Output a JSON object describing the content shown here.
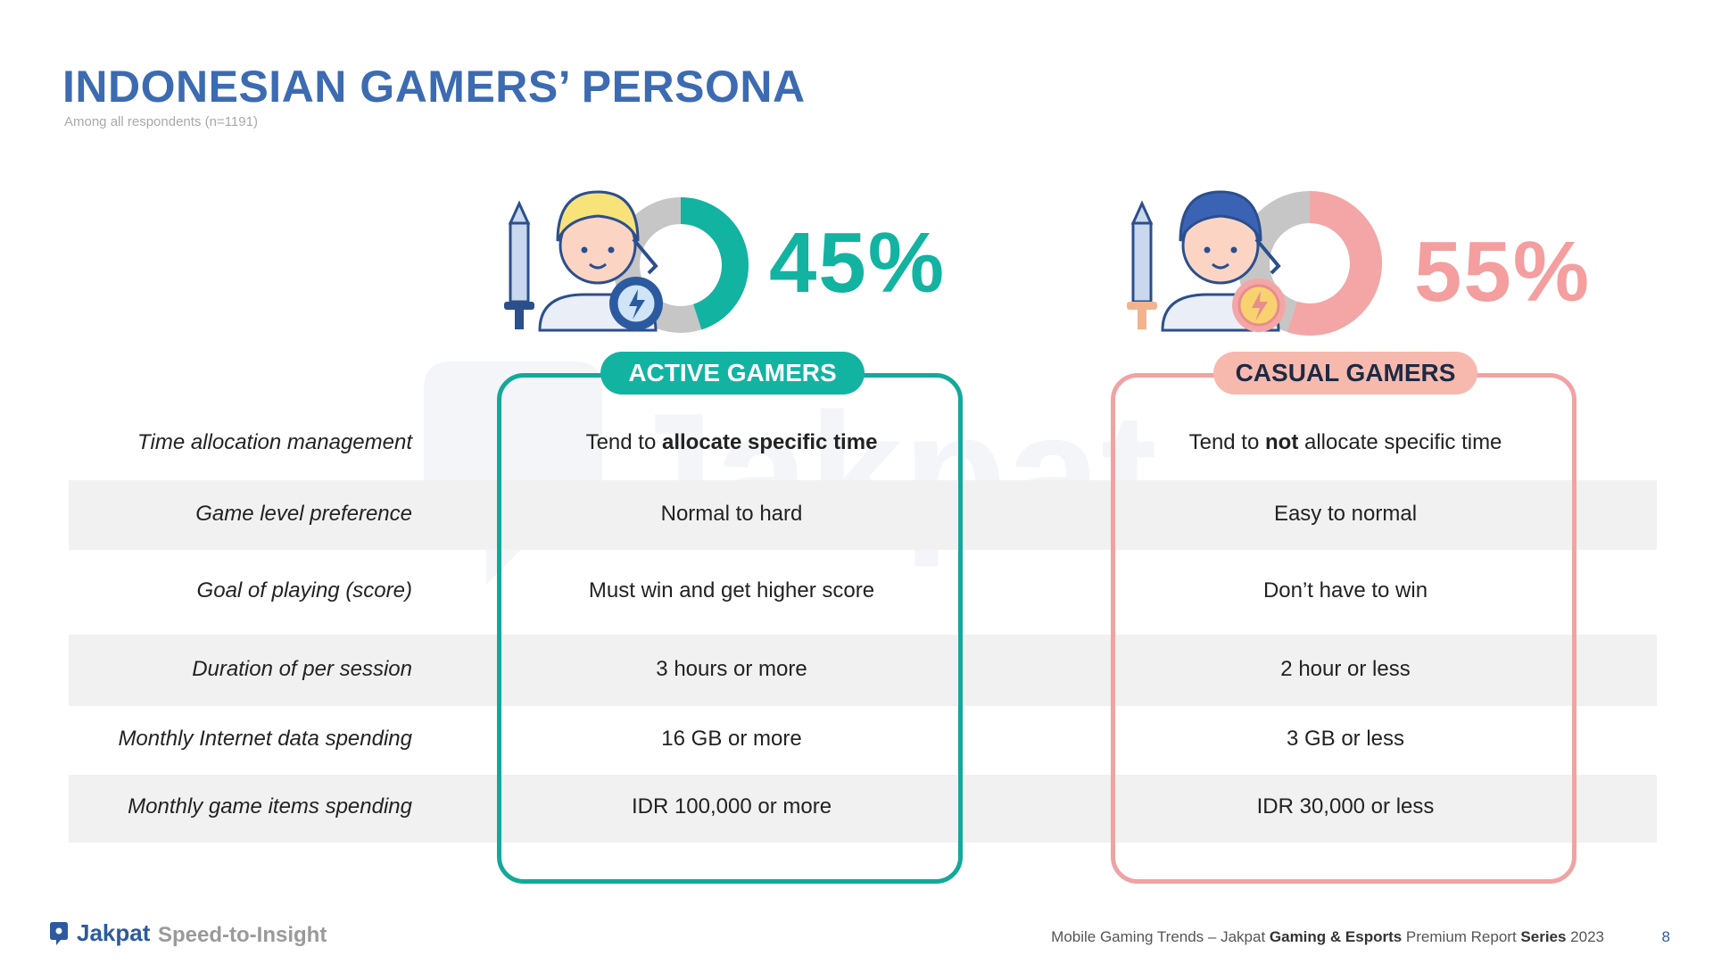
{
  "header": {
    "title": "INDONESIAN GAMERS’ PERSONA",
    "subtitle": "Among all respondents (n=1191)"
  },
  "watermark": {
    "text": "Jakpat"
  },
  "personas": {
    "active": {
      "label": "ACTIVE GAMERS",
      "percent_text": "45%",
      "share_percent": 45,
      "color": "#13b3a2"
    },
    "casual": {
      "label": "CASUAL GAMERS",
      "percent_text": "55%",
      "share_percent": 55,
      "color": "#f49e9f"
    }
  },
  "rows": [
    {
      "label": "Time allocation management",
      "active": {
        "pre": "Tend to ",
        "bold": "allocate specific time",
        "post": ""
      },
      "casual": {
        "pre": "Tend to ",
        "bold": "not",
        "post": " allocate specific time"
      }
    },
    {
      "label": "Game level preference",
      "active": {
        "pre": "Normal to hard"
      },
      "casual": {
        "pre": "Easy to normal"
      }
    },
    {
      "label": "Goal of playing (score)",
      "active": {
        "pre": "Must win and get higher score"
      },
      "casual": {
        "pre": "Don’t have to win"
      }
    },
    {
      "label": "Duration of per session",
      "active": {
        "pre": "3 hours or more"
      },
      "casual": {
        "pre": "2 hour or less"
      }
    },
    {
      "label": "Monthly Internet data spending",
      "active": {
        "pre": "16 GB or more"
      },
      "casual": {
        "pre": "3 GB or less"
      }
    },
    {
      "label": "Monthly game items spending",
      "active": {
        "pre": "IDR 100,000 or more"
      },
      "casual": {
        "pre": "IDR 30,000 or less"
      }
    }
  ],
  "footer": {
    "logo_text": "Jakpat",
    "tagline": "Speed-to-Insight",
    "note_part1": "Mobile Gaming Trends – Jakpat ",
    "note_bold1": "Gaming & Esports",
    "note_part2": " Premium Report ",
    "note_bold2": "Series",
    "note_part3": " 2023",
    "page_number": "8"
  }
}
